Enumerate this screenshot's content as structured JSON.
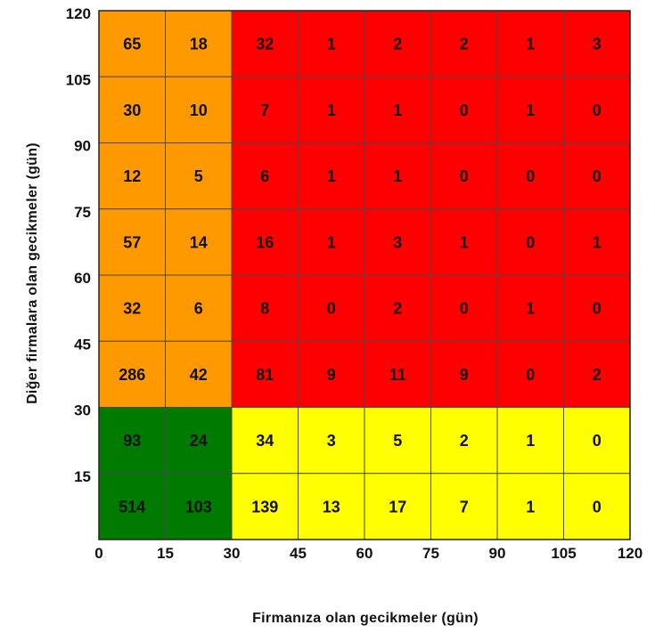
{
  "chart_data": {
    "type": "heatmap",
    "xlabel": "Firmanıza olan gecikmeler (gün)",
    "ylabel": "Diğer firmalara olan gecikmeler (gün)",
    "xlim": [
      0,
      120
    ],
    "ylim": [
      0,
      120
    ],
    "x_ticks": [
      0,
      15,
      30,
      45,
      60,
      75,
      90,
      105,
      120
    ],
    "y_ticks": [
      15,
      30,
      45,
      60,
      75,
      90,
      105,
      120
    ],
    "x_edges": [
      0,
      15,
      30,
      45,
      60,
      75,
      90,
      105,
      120
    ],
    "rows": [
      {
        "y_range": [
          105,
          120
        ],
        "values": [
          65,
          18,
          32,
          1,
          2,
          2,
          1,
          3
        ]
      },
      {
        "y_range": [
          90,
          105
        ],
        "values": [
          30,
          10,
          7,
          1,
          1,
          0,
          1,
          0
        ]
      },
      {
        "y_range": [
          75,
          90
        ],
        "values": [
          12,
          5,
          6,
          1,
          1,
          0,
          0,
          0
        ]
      },
      {
        "y_range": [
          60,
          75
        ],
        "values": [
          57,
          14,
          16,
          1,
          3,
          1,
          0,
          1
        ]
      },
      {
        "y_range": [
          45,
          60
        ],
        "values": [
          32,
          6,
          8,
          0,
          2,
          0,
          1,
          0
        ]
      },
      {
        "y_range": [
          30,
          45
        ],
        "values": [
          286,
          42,
          81,
          9,
          11,
          9,
          0,
          2
        ]
      },
      {
        "y_range": [
          15,
          30
        ],
        "values": [
          93,
          24,
          34,
          3,
          5,
          2,
          1,
          0
        ]
      },
      {
        "y_range": [
          0,
          15
        ],
        "values": [
          514,
          103,
          139,
          13,
          17,
          7,
          1,
          0
        ]
      }
    ],
    "zones": [
      {
        "x_range": [
          0,
          30
        ],
        "y_range": [
          30,
          120
        ],
        "color": "#ff9900"
      },
      {
        "x_range": [
          30,
          120
        ],
        "y_range": [
          30,
          120
        ],
        "color": "#ff0000"
      },
      {
        "x_range": [
          0,
          30
        ],
        "y_range": [
          0,
          30
        ],
        "color": "#007a00"
      },
      {
        "x_range": [
          30,
          120
        ],
        "y_range": [
          0,
          30
        ],
        "color": "#ffff00"
      }
    ],
    "grid": true
  }
}
